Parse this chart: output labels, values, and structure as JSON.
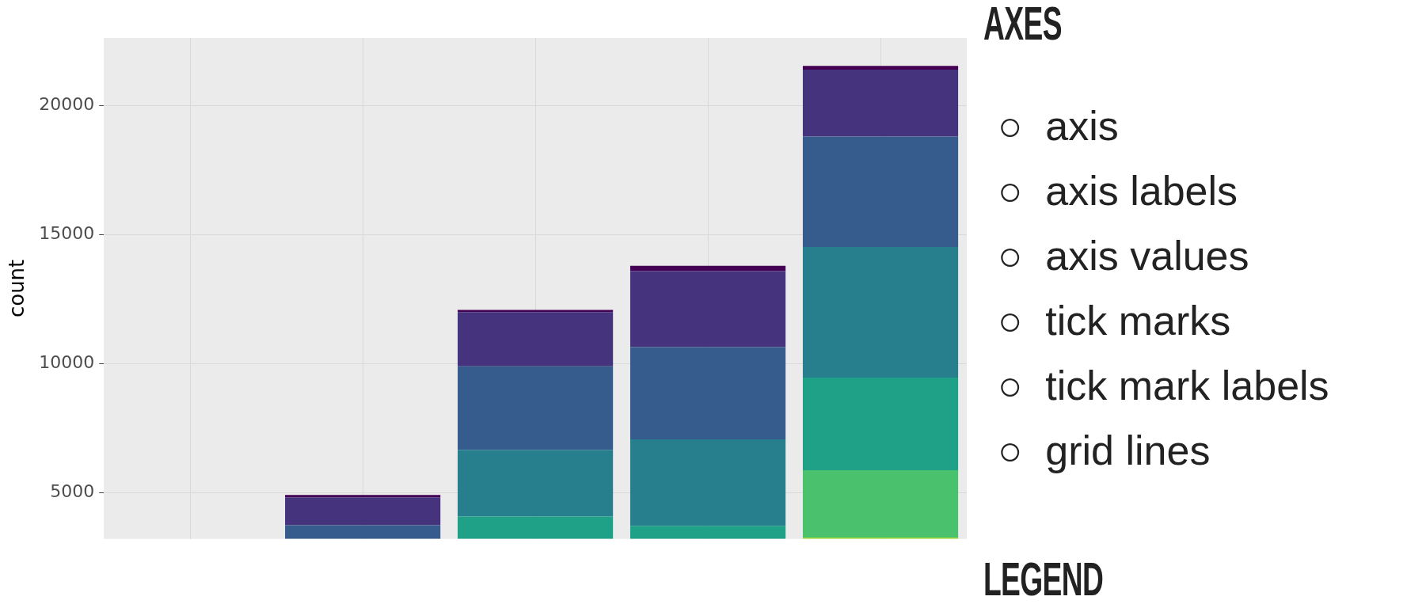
{
  "chart_data": [
    {
      "type": "bar",
      "ylabel": "count",
      "categories": [
        null,
        null,
        null,
        null,
        null
      ],
      "series": [
        {
          "color": "#a0da39",
          "base": [
            null,
            null,
            null,
            null,
            3200
          ],
          "values": [
            null,
            null,
            null,
            null,
            59
          ]
        },
        {
          "color": "#4ac16d",
          "base": [
            null,
            null,
            null,
            null,
            3259
          ],
          "values": [
            null,
            null,
            null,
            null,
            2606
          ]
        },
        {
          "color": "#1fa187",
          "base": [
            null,
            null,
            3200,
            3200,
            5865
          ],
          "values": [
            null,
            null,
            867,
            505,
            3589
          ]
        },
        {
          "color": "#277f8e",
          "base": [
            null,
            null,
            4067,
            3705,
            9454
          ],
          "values": [
            null,
            null,
            2591,
            3357,
            5071
          ]
        },
        {
          "color": "#365c8d",
          "base": [
            null,
            3200,
            6658,
            7062,
            14525
          ],
          "values": [
            null,
            529,
            3240,
            3575,
            4282
          ]
        },
        {
          "color": "#46337e",
          "base": [
            null,
            3729,
            9898,
            10637,
            18807
          ],
          "values": [
            null,
            1081,
            2100,
            2949,
            2598
          ]
        },
        {
          "color": "#440154",
          "base": [
            null,
            4810,
            11998,
            13586,
            21405
          ],
          "values": [
            null,
            96,
            84,
            205,
            146
          ]
        }
      ],
      "ylim": [
        3200,
        22630
      ],
      "yticks": [
        5000,
        10000,
        15000,
        20000
      ],
      "grid": true,
      "tick_labels": "y"
    },
    {
      "type": "other",
      "title": "AXES",
      "subtitle": "LEGEND",
      "annotations": [
        "○  axis",
        "○  axis labels",
        "○  axis values",
        "○  tick marks",
        "○  tick mark labels",
        "○  grid lines"
      ]
    }
  ]
}
